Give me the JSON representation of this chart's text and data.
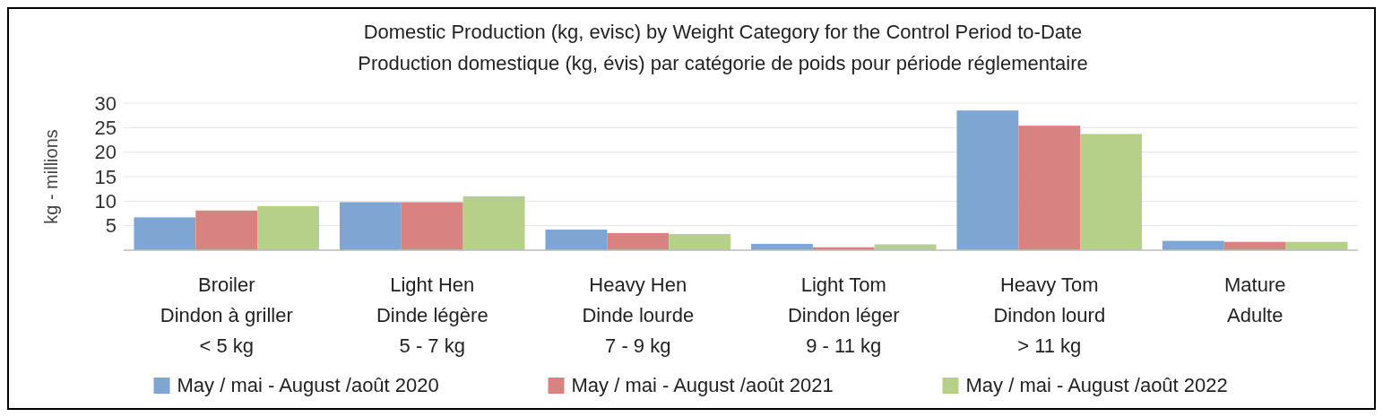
{
  "chart_data": {
    "type": "bar",
    "title": "Domestic Production (kg, evisc) by Weight Category for the Control Period to-Date",
    "subtitle": "Production domestique (kg, évis) par catégorie de poids pour période réglementaire",
    "ylabel": "kg - millions",
    "categories": [
      "Broiler\nDindon à griller\n< 5 kg",
      "Light Hen\nDinde légère\n5 - 7 kg",
      "Heavy Hen\nDinde lourde\n7 - 9 kg",
      "Light Tom\nDindon léger\n9 - 11 kg",
      "Heavy Tom\nDindon lourd\n> 11 kg",
      "Mature\nAdulte"
    ],
    "series": [
      {
        "name": "May / mai - August /août 2020",
        "color": "#7fa6d3",
        "values": [
          6.7,
          9.8,
          4.2,
          1.3,
          28.5,
          1.9
        ]
      },
      {
        "name": "May / mai - August /août 2021",
        "color": "#d98282",
        "values": [
          8.1,
          9.8,
          3.5,
          0.6,
          25.4,
          1.7
        ]
      },
      {
        "name": "May / mai - August /août 2022",
        "color": "#b6d08a",
        "values": [
          9.0,
          11.0,
          3.3,
          1.2,
          23.7,
          1.7
        ]
      }
    ],
    "ylim": [
      0,
      30
    ],
    "yticks": [
      5,
      10,
      15,
      20,
      25,
      30
    ],
    "grid": "y",
    "legend": "bottom"
  }
}
